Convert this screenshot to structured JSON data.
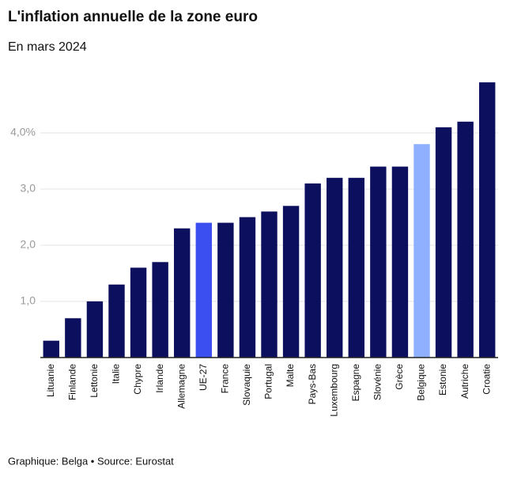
{
  "chart_data": {
    "type": "bar",
    "title": "L'inflation annuelle de la zone euro",
    "subtitle": "En mars 2024",
    "source": "Graphique: Belga • Source: Eurostat",
    "categories": [
      "Lituanie",
      "Finlande",
      "Lettonie",
      "Italie",
      "Chypre",
      "Irlande",
      "Allemagne",
      "UE-27",
      "France",
      "Slovaquie",
      "Portugal",
      "Malte",
      "Pays-Bas",
      "Luxembourg",
      "Espagne",
      "Slovénie",
      "Grèce",
      "Belgique",
      "Estonie",
      "Autriche",
      "Croatie"
    ],
    "values": [
      0.3,
      0.7,
      1.0,
      1.3,
      1.6,
      1.7,
      2.3,
      2.4,
      2.4,
      2.5,
      2.6,
      2.7,
      3.1,
      3.2,
      3.2,
      3.4,
      3.4,
      3.8,
      4.1,
      4.2,
      4.9
    ],
    "colors": [
      "#0b0f5e",
      "#0b0f5e",
      "#0b0f5e",
      "#0b0f5e",
      "#0b0f5e",
      "#0b0f5e",
      "#0b0f5e",
      "#3b4ef0",
      "#0b0f5e",
      "#0b0f5e",
      "#0b0f5e",
      "#0b0f5e",
      "#0b0f5e",
      "#0b0f5e",
      "#0b0f5e",
      "#0b0f5e",
      "#0b0f5e",
      "#8fb0ff",
      "#0b0f5e",
      "#0b0f5e",
      "#0b0f5e"
    ],
    "ylim": [
      0,
      5
    ],
    "yticks": [
      {
        "value": 1,
        "label": "1,0"
      },
      {
        "value": 2,
        "label": "2,0"
      },
      {
        "value": 3,
        "label": "3,0"
      },
      {
        "value": 4,
        "label": "4,0%"
      }
    ],
    "grid": true
  }
}
